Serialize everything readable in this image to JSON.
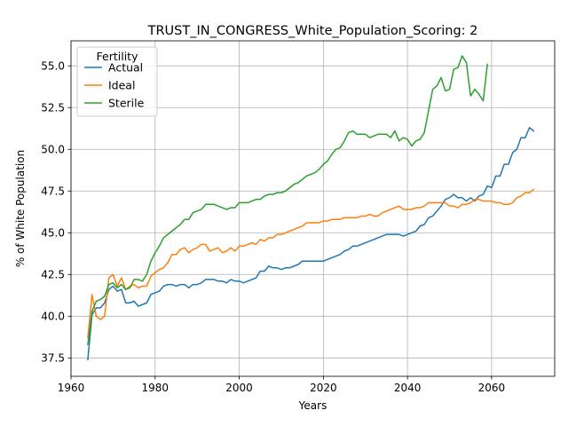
{
  "chart_data": {
    "type": "line",
    "title": "TRUST_IN_CONGRESS_White_Population_Scoring: 2",
    "xlabel": "Years",
    "ylabel": "% of White Population",
    "xlim": [
      1960,
      2075
    ],
    "ylim": [
      36.4,
      56.5
    ],
    "xticks": [
      "1960",
      "1980",
      "2000",
      "2020",
      "2040",
      "2060"
    ],
    "yticks": [
      "37.5",
      "40.0",
      "42.5",
      "45.0",
      "47.5",
      "50.0",
      "52.5",
      "55.0"
    ],
    "grid": true,
    "legend": {
      "title": "Fertility",
      "placement": "top-left"
    },
    "series": [
      {
        "name": "Actual",
        "color": "#1f77b4",
        "x": [
          1964,
          1965,
          1966,
          1967,
          1968,
          1969,
          1970,
          1971,
          1972,
          1973,
          1974,
          1975,
          1976,
          1977,
          1978,
          1979,
          1980,
          1981,
          1982,
          1983,
          1984,
          1985,
          1986,
          1987,
          1988,
          1989,
          1990,
          1991,
          1992,
          1993,
          1994,
          1995,
          1996,
          1997,
          1998,
          1999,
          2000,
          2001,
          2002,
          2003,
          2004,
          2005,
          2006,
          2007,
          2008,
          2009,
          2010,
          2011,
          2012,
          2013,
          2014,
          2015,
          2016,
          2017,
          2018,
          2019,
          2020,
          2021,
          2022,
          2023,
          2024,
          2025,
          2026,
          2027,
          2028,
          2029,
          2030,
          2031,
          2032,
          2033,
          2034,
          2035,
          2036,
          2037,
          2038,
          2039,
          2040,
          2041,
          2042,
          2043,
          2044,
          2045,
          2046,
          2047,
          2048,
          2049,
          2050,
          2051,
          2052,
          2053,
          2054,
          2055,
          2056,
          2057,
          2058,
          2059,
          2060,
          2061,
          2062,
          2063,
          2064,
          2065,
          2066,
          2067,
          2068,
          2069,
          2070
        ],
        "y": [
          37.4,
          40.1,
          40.5,
          40.5,
          40.8,
          41.6,
          41.8,
          41.5,
          41.6,
          40.8,
          40.8,
          40.9,
          40.6,
          40.7,
          40.8,
          41.3,
          41.4,
          41.5,
          41.8,
          41.9,
          41.9,
          41.8,
          41.9,
          41.9,
          41.7,
          41.9,
          41.9,
          42.0,
          42.2,
          42.2,
          42.2,
          42.1,
          42.1,
          42.0,
          42.2,
          42.1,
          42.1,
          42.0,
          42.1,
          42.2,
          42.3,
          42.7,
          42.7,
          43.0,
          42.9,
          42.9,
          42.8,
          42.9,
          42.9,
          43.0,
          43.1,
          43.3,
          43.3,
          43.3,
          43.3,
          43.3,
          43.3,
          43.4,
          43.5,
          43.6,
          43.7,
          43.9,
          44.0,
          44.2,
          44.2,
          44.3,
          44.4,
          44.5,
          44.6,
          44.7,
          44.8,
          44.9,
          44.9,
          44.9,
          44.9,
          44.8,
          44.9,
          45.0,
          45.1,
          45.4,
          45.5,
          45.9,
          46.0,
          46.3,
          46.6,
          47.0,
          47.1,
          47.3,
          47.1,
          47.1,
          46.9,
          47.1,
          46.9,
          47.2,
          47.3,
          47.8,
          47.7,
          48.4,
          48.4,
          49.1,
          49.1,
          49.8,
          50.0,
          50.7,
          50.7,
          51.3,
          51.1
        ]
      },
      {
        "name": "Ideal",
        "color": "#ff7f0e",
        "x": [
          1964,
          1965,
          1966,
          1967,
          1968,
          1969,
          1970,
          1971,
          1972,
          1973,
          1974,
          1975,
          1976,
          1977,
          1978,
          1979,
          1980,
          1981,
          1982,
          1983,
          1984,
          1985,
          1986,
          1987,
          1988,
          1989,
          1990,
          1991,
          1992,
          1993,
          1994,
          1995,
          1996,
          1997,
          1998,
          1999,
          2000,
          2001,
          2002,
          2003,
          2004,
          2005,
          2006,
          2007,
          2008,
          2009,
          2010,
          2011,
          2012,
          2013,
          2014,
          2015,
          2016,
          2017,
          2018,
          2019,
          2020,
          2021,
          2022,
          2023,
          2024,
          2025,
          2026,
          2027,
          2028,
          2029,
          2030,
          2031,
          2032,
          2033,
          2034,
          2035,
          2036,
          2037,
          2038,
          2039,
          2040,
          2041,
          2042,
          2043,
          2044,
          2045,
          2046,
          2047,
          2048,
          2049,
          2050,
          2051,
          2052,
          2053,
          2054,
          2055,
          2056,
          2057,
          2058,
          2059,
          2060,
          2061,
          2062,
          2063,
          2064,
          2065,
          2066,
          2067,
          2068,
          2069,
          2070
        ],
        "y": [
          38.7,
          41.3,
          40.0,
          39.8,
          40.0,
          42.3,
          42.5,
          41.8,
          42.3,
          41.6,
          41.8,
          41.9,
          41.7,
          41.8,
          41.8,
          42.4,
          42.6,
          42.8,
          42.9,
          43.2,
          43.7,
          43.7,
          44.0,
          44.1,
          43.8,
          44.0,
          44.1,
          44.3,
          44.3,
          43.9,
          44.0,
          44.1,
          43.8,
          43.9,
          44.1,
          43.9,
          44.2,
          44.2,
          44.3,
          44.4,
          44.3,
          44.6,
          44.5,
          44.7,
          44.7,
          44.9,
          44.9,
          45.0,
          45.1,
          45.2,
          45.3,
          45.4,
          45.6,
          45.6,
          45.6,
          45.6,
          45.7,
          45.7,
          45.8,
          45.8,
          45.8,
          45.9,
          45.9,
          45.9,
          45.9,
          46.0,
          46.0,
          46.1,
          46.0,
          46.0,
          46.2,
          46.3,
          46.4,
          46.5,
          46.6,
          46.4,
          46.4,
          46.4,
          46.5,
          46.5,
          46.6,
          46.8,
          46.8,
          46.8,
          46.8,
          46.8,
          46.6,
          46.6,
          46.5,
          46.7,
          46.7,
          46.8,
          47.0,
          47.0,
          46.9,
          46.9,
          46.9,
          46.8,
          46.8,
          46.7,
          46.7,
          46.8,
          47.1,
          47.2,
          47.4,
          47.4,
          47.6
        ]
      },
      {
        "name": "Sterile",
        "color": "#2ca02c",
        "x": [
          1964,
          1965,
          1966,
          1967,
          1968,
          1969,
          1970,
          1971,
          1972,
          1973,
          1974,
          1975,
          1976,
          1977,
          1978,
          1979,
          1980,
          1981,
          1982,
          1983,
          1984,
          1985,
          1986,
          1987,
          1988,
          1989,
          1990,
          1991,
          1992,
          1993,
          1994,
          1995,
          1996,
          1997,
          1998,
          1999,
          2000,
          2001,
          2002,
          2003,
          2004,
          2005,
          2006,
          2007,
          2008,
          2009,
          2010,
          2011,
          2012,
          2013,
          2014,
          2015,
          2016,
          2017,
          2018,
          2019,
          2020,
          2021,
          2022,
          2023,
          2024,
          2025,
          2026,
          2027,
          2028,
          2029,
          2030,
          2031,
          2032,
          2033,
          2034,
          2035,
          2036,
          2037,
          2038,
          2039,
          2040,
          2041,
          2042,
          2043,
          2044,
          2045,
          2046,
          2047,
          2048,
          2049,
          2050,
          2051,
          2052,
          2053,
          2054,
          2055,
          2056,
          2057,
          2058,
          2059
        ],
        "y": [
          38.3,
          40.3,
          40.9,
          41.0,
          41.2,
          41.9,
          42.0,
          41.7,
          41.9,
          41.6,
          41.7,
          42.2,
          42.2,
          42.1,
          42.5,
          43.3,
          43.8,
          44.2,
          44.7,
          44.9,
          45.1,
          45.3,
          45.5,
          45.8,
          45.8,
          46.2,
          46.3,
          46.4,
          46.7,
          46.7,
          46.7,
          46.6,
          46.5,
          46.4,
          46.5,
          46.5,
          46.8,
          46.8,
          46.8,
          46.9,
          47.0,
          47.0,
          47.2,
          47.3,
          47.3,
          47.4,
          47.4,
          47.5,
          47.7,
          47.9,
          48.0,
          48.2,
          48.4,
          48.5,
          48.6,
          48.8,
          49.1,
          49.3,
          49.7,
          50.0,
          50.1,
          50.5,
          51.0,
          51.1,
          50.9,
          50.9,
          50.9,
          50.7,
          50.8,
          50.9,
          50.9,
          50.9,
          50.7,
          51.1,
          50.5,
          50.7,
          50.6,
          50.2,
          50.5,
          50.6,
          51.0,
          52.3,
          53.6,
          53.8,
          54.3,
          53.5,
          53.6,
          54.8,
          54.9,
          55.6,
          55.2,
          53.2,
          53.6,
          53.3,
          52.9,
          55.1
        ]
      }
    ]
  }
}
